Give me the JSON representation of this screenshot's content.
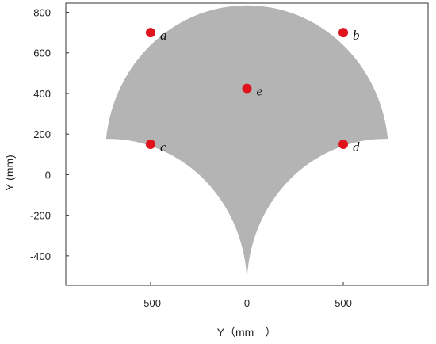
{
  "chart_data": {
    "type": "scatter",
    "title": "",
    "xlabel": "Y（mm　）",
    "ylabel": "Y (mm)",
    "xlim": [
      -940,
      940
    ],
    "ylim": [
      -545,
      845
    ],
    "x_ticks": [
      {
        "value": -500,
        "label": "-500"
      },
      {
        "value": 0,
        "label": "0"
      },
      {
        "value": 500,
        "label": "500"
      }
    ],
    "y_ticks": [
      {
        "value": 800,
        "label": "800"
      },
      {
        "value": 600,
        "label": "600"
      },
      {
        "value": 400,
        "label": "400"
      },
      {
        "value": 200,
        "label": "200"
      },
      {
        "value": 0,
        "label": "0"
      },
      {
        "value": -200,
        "label": "-200"
      },
      {
        "value": -400,
        "label": "-400"
      }
    ],
    "grid": false,
    "legend": "none",
    "region": {
      "description_shape": "fan-shaped gray region",
      "color": "#b4b4b4",
      "top_arc": {
        "center": [
          0,
          100
        ],
        "radius": 735,
        "from_angle_deg": 6,
        "to_angle_deg": 174
      },
      "left_edge": {
        "from": [
          -731,
          177
        ],
        "to": [
          -725,
          177
        ]
      },
      "lower_left_arc": {
        "center": [
          -725,
          -545
        ],
        "radius": 722
      },
      "lower_right_arc": {
        "center": [
          725,
          -545
        ],
        "radius": 722
      },
      "bottom_point": [
        0,
        -545
      ]
    },
    "points": [
      {
        "label": "a",
        "x": -500,
        "y": 700
      },
      {
        "label": "b",
        "x": 500,
        "y": 700
      },
      {
        "label": "c",
        "x": -500,
        "y": 150
      },
      {
        "label": "d",
        "x": 500,
        "y": 150
      },
      {
        "label": "e",
        "x": 0,
        "y": 425
      }
    ],
    "point_color": "#e0141c"
  }
}
